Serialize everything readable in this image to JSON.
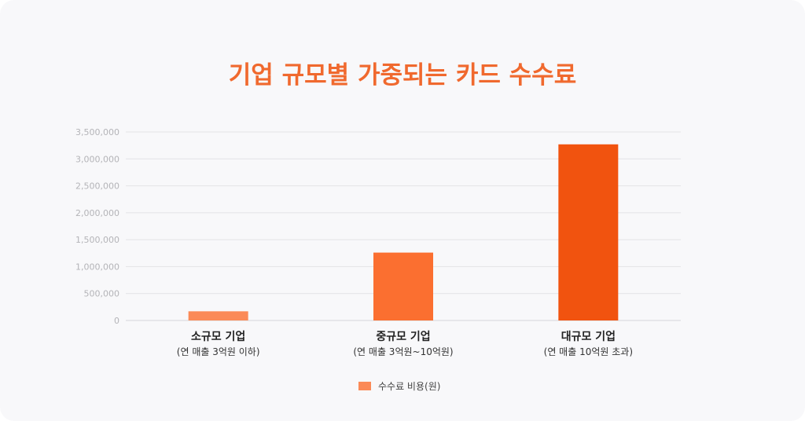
{
  "title": "기업 규모별 가중되는 카드 수수료",
  "colors": {
    "title": "#f0692e",
    "grid": "#e3e3e6",
    "bars": [
      "#fb8a57",
      "#fb6f30",
      "#f1530f"
    ],
    "legend": "#fb8a57"
  },
  "chart_data": {
    "type": "bar",
    "categories": [
      "소규모 기업",
      "중규모 기업",
      "대규모 기업"
    ],
    "category_sublabels": [
      "(연 매출 3억원 이하)",
      "(연 매출 3억원~10억원)",
      "(연 매출 10억원 초과)"
    ],
    "y_tick_labels": [
      "0",
      "500,000",
      "1,000,000",
      "1,500,000",
      "2,000,000",
      "2,500,000",
      "3,000,000",
      "3,500,000"
    ],
    "series": [
      {
        "name": "수수료 비용(원)",
        "values": [
          170000,
          1260000,
          3270000
        ]
      }
    ],
    "ylim": [
      0,
      3500000
    ],
    "grid": true,
    "legend_position": "bottom"
  }
}
